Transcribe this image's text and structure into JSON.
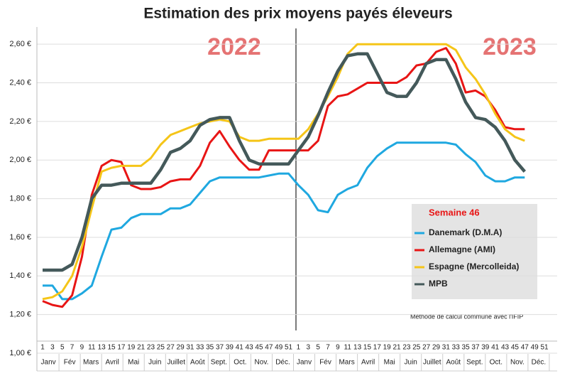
{
  "chart_data": {
    "type": "line",
    "title": "Estimation des prix moyens payés éleveurs",
    "year_labels": [
      "2022",
      "2023"
    ],
    "legend_title": "Semaine 46",
    "note": "Méthode de calcul commune avec l'IFIP",
    "categories": [
      "1",
      "3",
      "5",
      "7",
      "9",
      "11",
      "13",
      "15",
      "17",
      "19",
      "21",
      "23",
      "25",
      "27",
      "29",
      "31",
      "33",
      "35",
      "37",
      "39",
      "41",
      "43",
      "45",
      "47",
      "49",
      "51",
      "1",
      "3",
      "5",
      "7",
      "9",
      "11",
      "13",
      "15",
      "17",
      "19",
      "21",
      "23",
      "25",
      "27",
      "29",
      "31",
      "33",
      "35",
      "37",
      "39",
      "41",
      "43",
      "45",
      "47",
      "49",
      "51"
    ],
    "months": [
      "Janv",
      "Fév",
      "Mars",
      "Avril",
      "Mai",
      "Juin",
      "Juillet",
      "Août",
      "Sept.",
      "Oct.",
      "Nov.",
      "Déc.",
      "Janv",
      "Fév",
      "Mars",
      "Avril",
      "Mai",
      "Juin",
      "Juillet",
      "Août",
      "Sept.",
      "Oct.",
      "Nov.",
      "Déc."
    ],
    "ylim": [
      1.0,
      2.7
    ],
    "yticks": [
      {
        "value": 1.0,
        "label": "1,00 €"
      },
      {
        "value": 1.2,
        "label": "1,20 €"
      },
      {
        "value": 1.4,
        "label": "1,40 €"
      },
      {
        "value": 1.6,
        "label": "1,60 €"
      },
      {
        "value": 1.8,
        "label": "1,80 €"
      },
      {
        "value": 2.0,
        "label": "2,00 €"
      },
      {
        "value": 2.2,
        "label": "2,20 €"
      },
      {
        "value": 2.4,
        "label": "2,40 €"
      },
      {
        "value": 2.6,
        "label": "2,60 €"
      }
    ],
    "grid": true,
    "series": [
      {
        "name": "Danemark (D.M.A)",
        "color": "#1fa8e0",
        "values": [
          1.35,
          1.35,
          1.28,
          1.28,
          1.31,
          1.35,
          1.5,
          1.64,
          1.65,
          1.7,
          1.72,
          1.72,
          1.72,
          1.75,
          1.75,
          1.77,
          1.83,
          1.89,
          1.91,
          1.91,
          1.91,
          1.91,
          1.91,
          1.92,
          1.93,
          1.93,
          1.87,
          1.82,
          1.74,
          1.73,
          1.82,
          1.85,
          1.87,
          1.96,
          2.02,
          2.06,
          2.09,
          2.09,
          2.09,
          2.09,
          2.09,
          2.09,
          2.08,
          2.03,
          1.99,
          1.92,
          1.89,
          1.89,
          1.91,
          1.91,
          null,
          null
        ]
      },
      {
        "name": "Allemagne (AMI)",
        "color": "#e81515",
        "values": [
          1.27,
          1.25,
          1.24,
          1.3,
          1.5,
          1.82,
          1.97,
          2.0,
          1.99,
          1.87,
          1.85,
          1.85,
          1.86,
          1.89,
          1.9,
          1.9,
          1.97,
          2.09,
          2.15,
          2.07,
          2.0,
          1.95,
          1.95,
          2.05,
          2.05,
          2.05,
          2.05,
          2.05,
          2.1,
          2.28,
          2.33,
          2.34,
          2.37,
          2.4,
          2.4,
          2.4,
          2.4,
          2.43,
          2.49,
          2.5,
          2.56,
          2.58,
          2.5,
          2.35,
          2.36,
          2.33,
          2.26,
          2.17,
          2.16,
          2.16,
          null,
          null
        ]
      },
      {
        "name": "Espagne (Mercolleida)",
        "color": "#f5c518",
        "values": [
          1.28,
          1.29,
          1.32,
          1.4,
          1.55,
          1.75,
          1.94,
          1.96,
          1.97,
          1.97,
          1.97,
          2.01,
          2.08,
          2.13,
          2.15,
          2.17,
          2.19,
          2.2,
          2.21,
          2.2,
          2.12,
          2.1,
          2.1,
          2.11,
          2.11,
          2.11,
          2.11,
          2.16,
          2.24,
          2.33,
          2.43,
          2.55,
          2.6,
          2.6,
          2.6,
          2.6,
          2.6,
          2.6,
          2.6,
          2.6,
          2.6,
          2.6,
          2.57,
          2.48,
          2.42,
          2.34,
          2.24,
          2.16,
          2.12,
          2.1,
          null,
          null
        ]
      },
      {
        "name": "MPB",
        "color": "#44595a",
        "values": [
          1.43,
          1.43,
          1.43,
          1.46,
          1.6,
          1.8,
          1.87,
          1.87,
          1.88,
          1.88,
          1.88,
          1.88,
          1.95,
          2.04,
          2.06,
          2.1,
          2.18,
          2.21,
          2.22,
          2.22,
          2.1,
          2.0,
          1.98,
          1.98,
          1.98,
          1.98,
          2.05,
          2.12,
          2.23,
          2.35,
          2.46,
          2.54,
          2.55,
          2.55,
          2.45,
          2.35,
          2.33,
          2.33,
          2.4,
          2.5,
          2.52,
          2.52,
          2.42,
          2.3,
          2.22,
          2.21,
          2.17,
          2.1,
          2.0,
          1.94,
          null,
          null
        ]
      }
    ]
  }
}
